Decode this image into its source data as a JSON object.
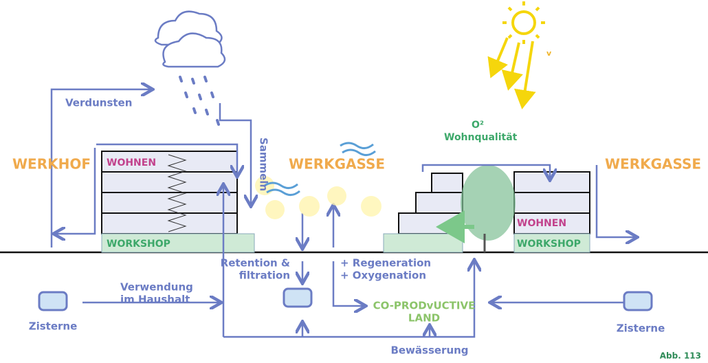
{
  "labels": [
    "Verdunsten",
    "Sammeln",
    "WERKHOF",
    "WOHNEN",
    "WORKSHOP",
    "WERKGASSE",
    "Wohnqualität",
    "O²",
    "WERKGASSE",
    "WOHNEN",
    "WORKSHOP",
    "Retention &",
    "filtration",
    "+ Regeneration",
    "+ Oxygenation",
    "Verwendung",
    "im Haushalt",
    "CO-PRODvUCTIVE",
    "LAND",
    "Zisterne",
    "Zisterne",
    "Bewässerung",
    "Abb. 113",
    "v"
  ]
}
